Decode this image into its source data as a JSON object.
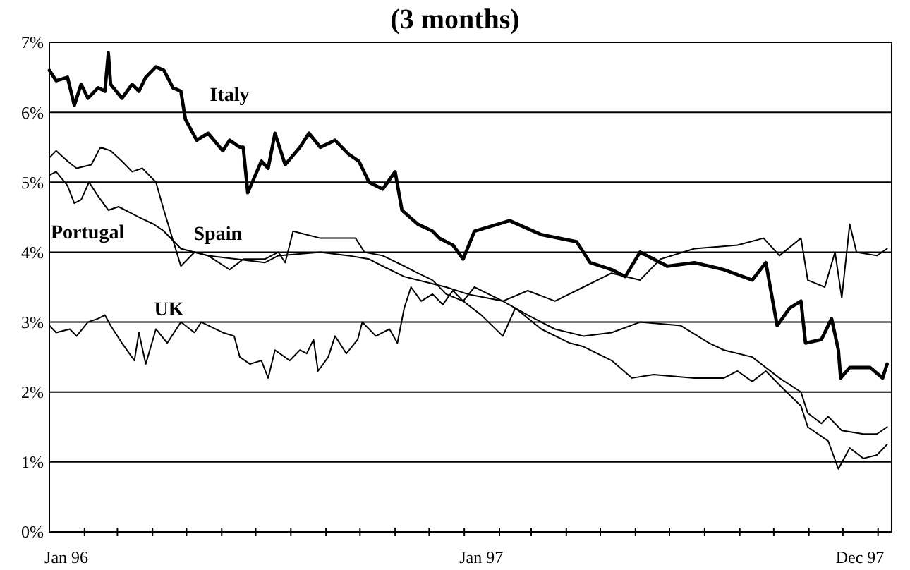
{
  "chart_data": {
    "type": "line",
    "title": "(3 months)",
    "xlim": [
      "1996-01-01",
      "1998-01-13"
    ],
    "ylim": [
      0,
      7
    ],
    "yticks": [
      {
        "value": 0,
        "label": "0%"
      },
      {
        "value": 1,
        "label": "1%"
      },
      {
        "value": 2,
        "label": "2%"
      },
      {
        "value": 3,
        "label": "3%"
      },
      {
        "value": 4,
        "label": "4%"
      },
      {
        "value": 5,
        "label": "5%"
      },
      {
        "value": 6,
        "label": "6%"
      },
      {
        "value": 7,
        "label": "7%"
      }
    ],
    "xticks": [
      {
        "value": "1996-02-01",
        "label": null
      },
      {
        "value": "1996-03-01",
        "label": null
      },
      {
        "value": "1996-04-01",
        "label": null
      },
      {
        "value": "1996-05-01",
        "label": null
      },
      {
        "value": "1996-06-01",
        "label": null
      },
      {
        "value": "1996-07-01",
        "label": null
      },
      {
        "value": "1996-08-01",
        "label": null
      },
      {
        "value": "1996-09-01",
        "label": null
      },
      {
        "value": "1996-10-01",
        "label": null
      },
      {
        "value": "1996-11-01",
        "label": null
      },
      {
        "value": "1996-12-01",
        "label": null
      },
      {
        "value": "1997-01-01",
        "label": null
      },
      {
        "value": "1997-02-01",
        "label": null
      },
      {
        "value": "1997-03-01",
        "label": null
      },
      {
        "value": "1997-04-01",
        "label": null
      },
      {
        "value": "1997-05-01",
        "label": null
      },
      {
        "value": "1997-06-01",
        "label": null
      },
      {
        "value": "1997-07-01",
        "label": null
      },
      {
        "value": "1997-08-01",
        "label": null
      },
      {
        "value": "1997-09-01",
        "label": null
      },
      {
        "value": "1997-10-01",
        "label": null
      },
      {
        "value": "1997-11-01",
        "label": null
      },
      {
        "value": "1997-12-01",
        "label": null
      },
      {
        "value": "1998-01-01",
        "label": null
      },
      {
        "value": "1996-01-16",
        "label": "Jan 96"
      },
      {
        "value": "1997-01-16",
        "label": "Jan 97"
      },
      {
        "value": "1997-12-16",
        "label": "Dec 97"
      }
    ],
    "grid": "y",
    "marker": "none",
    "line_style": "solid",
    "series": [
      {
        "name": "Italy",
        "color": "#000000",
        "x": [
          "1996-01-01",
          "1996-01-07",
          "1996-01-17",
          "1996-01-23",
          "1996-01-29",
          "1996-02-04",
          "1996-02-13",
          "1996-02-19",
          "1996-02-22",
          "1996-02-24",
          "1996-03-05",
          "1996-03-14",
          "1996-03-20",
          "1996-03-26",
          "1996-04-04",
          "1996-04-11",
          "1996-04-19",
          "1996-04-26",
          "1996-04-30",
          "1996-05-10",
          "1996-05-20",
          "1996-06-02",
          "1996-06-08",
          "1996-06-17",
          "1996-06-20",
          "1996-06-24",
          "1996-07-06",
          "1996-07-12",
          "1996-07-18",
          "1996-07-27",
          "1996-08-09",
          "1996-08-17",
          "1996-08-27",
          "1996-09-09",
          "1996-09-21",
          "1996-09-30",
          "1996-10-09",
          "1996-10-21",
          "1996-11-01",
          "1996-11-07",
          "1996-11-21",
          "1996-12-04",
          "1996-12-10",
          "1996-12-22",
          "1996-12-31",
          "1997-01-10",
          "1997-02-10",
          "1997-03-10",
          "1997-04-10",
          "1997-04-22",
          "1997-05-11",
          "1997-05-23",
          "1997-06-05",
          "1997-06-29",
          "1997-07-23",
          "1997-08-18",
          "1997-09-12",
          "1997-09-24",
          "1997-10-04",
          "1997-10-15",
          "1997-10-25",
          "1997-10-29",
          "1997-11-12",
          "1997-11-21",
          "1997-11-27",
          "1997-11-29",
          "1997-12-07",
          "1997-12-25",
          "1998-01-05",
          "1998-01-09"
        ],
        "values": [
          6.6,
          6.45,
          6.5,
          6.1,
          6.4,
          6.2,
          6.35,
          6.3,
          6.85,
          6.4,
          6.2,
          6.4,
          6.3,
          6.5,
          6.65,
          6.6,
          6.35,
          6.3,
          5.9,
          5.6,
          5.7,
          5.45,
          5.6,
          5.5,
          5.5,
          4.85,
          5.3,
          5.2,
          5.7,
          5.25,
          5.5,
          5.7,
          5.5,
          5.6,
          5.4,
          5.3,
          5.0,
          4.9,
          5.15,
          4.6,
          4.4,
          4.3,
          4.2,
          4.1,
          3.9,
          4.3,
          4.45,
          4.25,
          4.15,
          3.85,
          3.75,
          3.65,
          4.0,
          3.8,
          3.85,
          3.75,
          3.6,
          3.85,
          2.95,
          3.2,
          3.3,
          2.7,
          2.75,
          3.05,
          2.6,
          2.2,
          2.35,
          2.35,
          2.2,
          2.4
        ]
      },
      {
        "name": "Spain",
        "color": "#000000",
        "x": [
          "1996-01-01",
          "1996-01-07",
          "1996-01-17",
          "1996-01-25",
          "1996-02-07",
          "1996-02-15",
          "1996-02-24",
          "1996-03-05",
          "1996-03-14",
          "1996-03-23",
          "1996-04-04",
          "1996-04-11",
          "1996-04-26",
          "1996-05-08",
          "1996-05-20",
          "1996-06-08",
          "1996-06-20",
          "1996-07-09",
          "1996-07-21",
          "1996-07-27",
          "1996-08-03",
          "1996-08-27",
          "1996-09-27",
          "1996-10-05",
          "1996-10-21",
          "1996-11-09",
          "1996-11-21",
          "1996-12-04",
          "1996-12-16",
          "1996-12-31",
          "1997-01-16",
          "1997-02-04",
          "1997-02-15",
          "1997-03-10",
          "1997-04-04",
          "1997-04-16",
          "1997-05-11",
          "1997-05-29",
          "1997-06-17",
          "1997-07-23",
          "1997-08-18",
          "1997-08-30",
          "1997-09-12",
          "1997-09-24",
          "1997-10-06",
          "1997-10-25",
          "1997-10-31",
          "1997-11-18",
          "1997-11-27",
          "1997-12-07",
          "1997-12-19",
          "1997-12-31",
          "1998-01-09"
        ],
        "values": [
          5.35,
          5.45,
          5.3,
          5.2,
          5.25,
          5.5,
          5.45,
          5.3,
          5.15,
          5.2,
          5.0,
          4.6,
          3.8,
          4.0,
          3.95,
          3.75,
          3.9,
          3.9,
          4.0,
          3.85,
          4.3,
          4.2,
          4.2,
          4.0,
          3.95,
          3.8,
          3.7,
          3.6,
          3.4,
          3.3,
          3.1,
          2.8,
          3.2,
          2.9,
          2.7,
          2.65,
          2.45,
          2.2,
          2.25,
          2.2,
          2.2,
          2.3,
          2.15,
          2.3,
          2.1,
          1.8,
          1.5,
          1.3,
          0.9,
          1.2,
          1.05,
          1.1,
          1.25
        ]
      },
      {
        "name": "Portugal",
        "color": "#000000",
        "x": [
          "1996-01-01",
          "1996-01-07",
          "1996-01-17",
          "1996-01-23",
          "1996-01-29",
          "1996-02-05",
          "1996-02-13",
          "1996-02-22",
          "1996-03-02",
          "1996-03-14",
          "1996-03-20",
          "1996-04-02",
          "1996-04-11",
          "1996-04-26",
          "1996-05-08",
          "1996-05-20",
          "1996-06-14",
          "1996-07-09",
          "1996-07-21",
          "1996-08-27",
          "1996-09-21",
          "1996-10-09",
          "1996-10-21",
          "1996-11-09",
          "1996-11-21",
          "1996-12-16",
          "1997-01-04",
          "1997-02-04",
          "1997-02-26",
          "1997-03-22",
          "1997-04-16",
          "1997-05-11",
          "1997-06-05",
          "1997-07-11",
          "1997-08-05",
          "1997-08-18",
          "1997-09-12",
          "1997-10-06",
          "1997-10-25",
          "1997-10-31",
          "1997-11-12",
          "1997-11-18",
          "1997-11-30",
          "1997-12-19",
          "1997-12-31",
          "1998-01-09"
        ],
        "values": [
          5.1,
          5.15,
          4.95,
          4.7,
          4.75,
          5.0,
          4.8,
          4.6,
          4.65,
          4.55,
          4.5,
          4.4,
          4.3,
          4.05,
          4.0,
          3.95,
          3.9,
          3.85,
          3.95,
          4.0,
          3.95,
          3.9,
          3.8,
          3.65,
          3.6,
          3.5,
          3.4,
          3.3,
          3.1,
          2.9,
          2.8,
          2.85,
          3.0,
          2.95,
          2.7,
          2.6,
          2.5,
          2.2,
          2.0,
          1.7,
          1.55,
          1.65,
          1.45,
          1.4,
          1.4,
          1.5
        ]
      },
      {
        "name": "UK",
        "color": "#000000",
        "x": [
          "1996-01-01",
          "1996-01-07",
          "1996-01-19",
          "1996-01-25",
          "1996-02-04",
          "1996-02-13",
          "1996-02-19",
          "1996-02-24",
          "1996-03-05",
          "1996-03-16",
          "1996-03-20",
          "1996-03-26",
          "1996-04-04",
          "1996-04-14",
          "1996-04-26",
          "1996-05-08",
          "1996-05-14",
          "1996-06-02",
          "1996-06-12",
          "1996-06-17",
          "1996-06-26",
          "1996-07-06",
          "1996-07-12",
          "1996-07-18",
          "1996-07-31",
          "1996-08-09",
          "1996-08-15",
          "1996-08-21",
          "1996-08-25",
          "1996-09-03",
          "1996-09-09",
          "1996-09-19",
          "1996-09-29",
          "1996-10-03",
          "1996-10-15",
          "1996-10-27",
          "1996-11-03",
          "1996-11-09",
          "1996-11-15",
          "1996-11-24",
          "1996-12-04",
          "1996-12-13",
          "1996-12-22",
          "1996-12-31",
          "1997-01-10",
          "1997-02-04",
          "1997-02-26",
          "1997-03-22",
          "1997-04-16",
          "1997-05-11",
          "1997-06-05",
          "1997-06-23",
          "1997-07-23",
          "1997-08-30",
          "1997-09-22",
          "1997-10-06",
          "1997-10-25",
          "1997-10-31",
          "1997-11-15",
          "1997-11-24",
          "1997-11-30",
          "1997-12-07",
          "1997-12-13",
          "1997-12-31",
          "1998-01-09"
        ],
        "values": [
          2.95,
          2.85,
          2.9,
          2.8,
          3.0,
          3.05,
          3.1,
          2.95,
          2.7,
          2.45,
          2.85,
          2.4,
          2.9,
          2.7,
          3.0,
          2.85,
          3.0,
          2.85,
          2.8,
          2.5,
          2.4,
          2.45,
          2.2,
          2.6,
          2.45,
          2.6,
          2.55,
          2.75,
          2.3,
          2.5,
          2.8,
          2.55,
          2.75,
          3.0,
          2.8,
          2.9,
          2.7,
          3.2,
          3.5,
          3.3,
          3.4,
          3.25,
          3.45,
          3.3,
          3.5,
          3.3,
          3.45,
          3.3,
          3.5,
          3.7,
          3.6,
          3.9,
          4.05,
          4.1,
          4.2,
          3.95,
          4.2,
          3.6,
          3.5,
          4.0,
          3.35,
          4.4,
          4.0,
          3.95,
          4.05
        ]
      }
    ]
  }
}
